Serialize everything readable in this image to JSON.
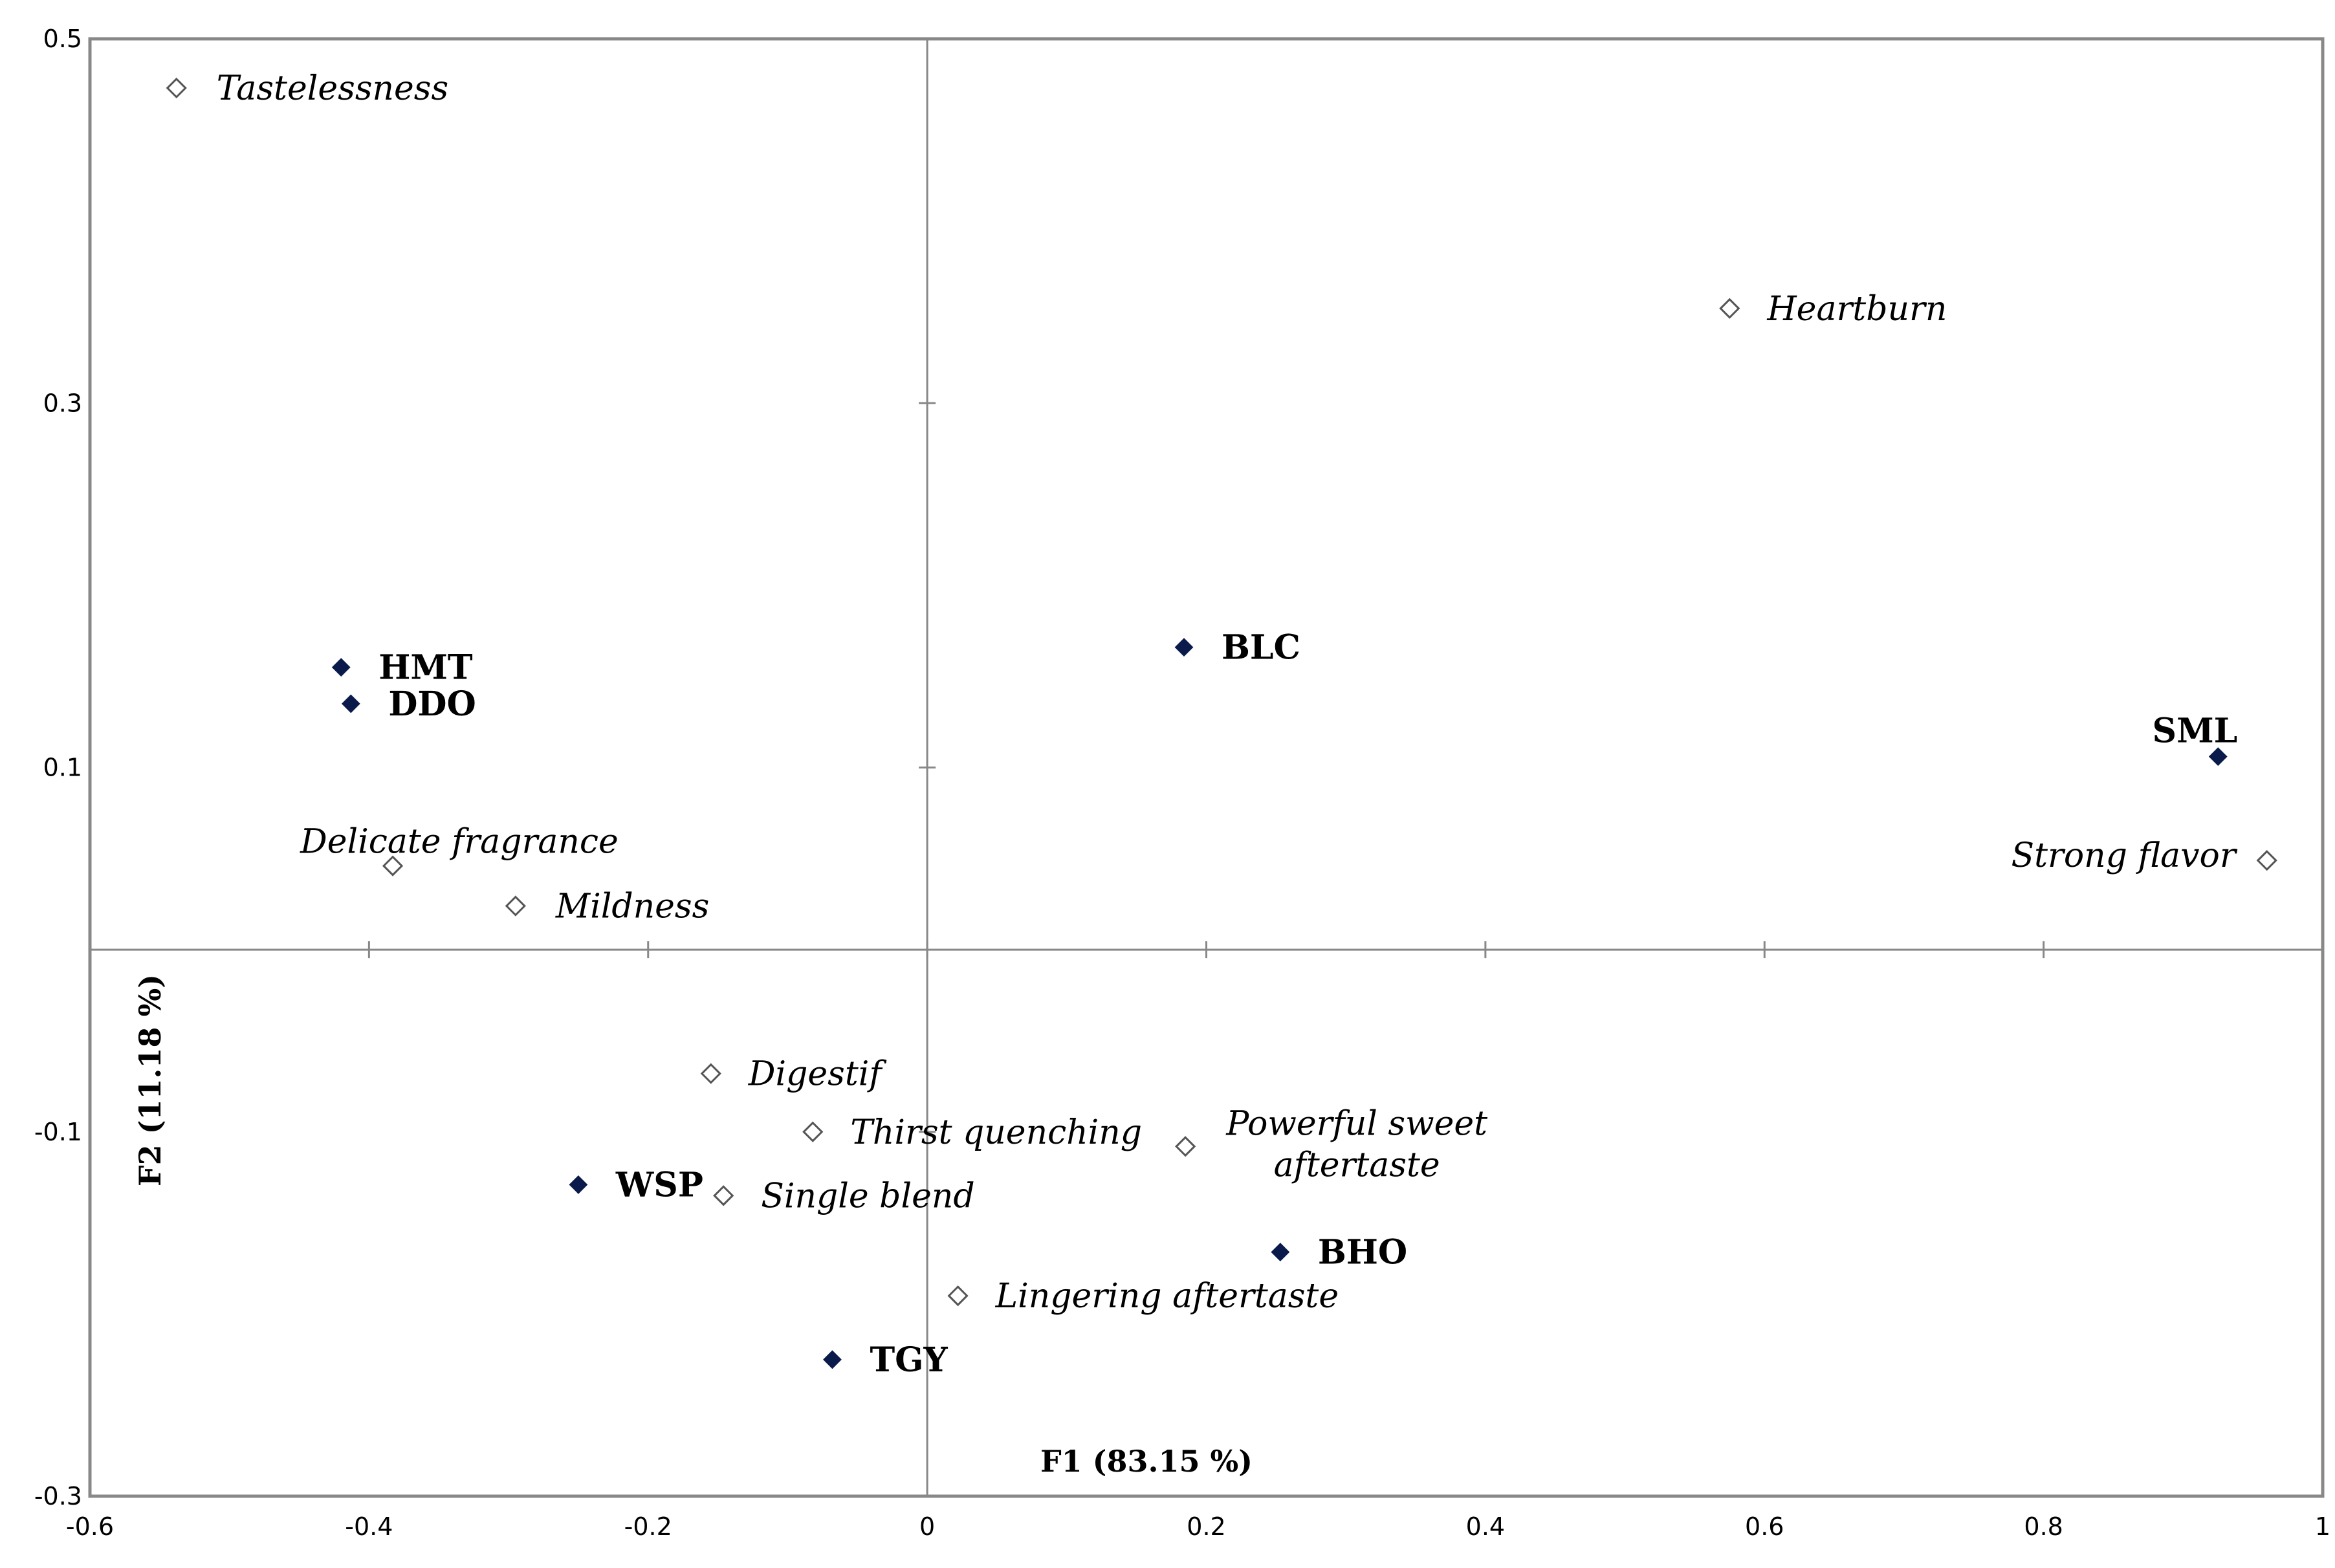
{
  "chart_data": {
    "type": "scatter",
    "title": "",
    "xlabel": "F1 (83.15 %)",
    "ylabel": "F2 (11.18 %)",
    "xlim": [
      -0.6,
      1.0
    ],
    "ylim": [
      -0.3,
      0.5
    ],
    "x_ticks": [
      "-0.6",
      "-0.4",
      "-0.2",
      "0",
      "0.2",
      "0.4",
      "0.6",
      "0.8",
      "1"
    ],
    "y_ticks": [
      "-0.3",
      "-0.1",
      "0.1",
      "0.3",
      "0.5"
    ],
    "grid": false,
    "legend": "none",
    "colors": {
      "sample": "#0a1a4a",
      "attribute_outline": "#555555",
      "frame": "#888888"
    },
    "series": [
      {
        "marker": "filled-diamond",
        "points": [
          {
            "label": "HMT",
            "x": -0.42,
            "y": 0.155
          },
          {
            "label": "DDO",
            "x": -0.413,
            "y": 0.135
          },
          {
            "label": "BLC",
            "x": 0.184,
            "y": 0.166
          },
          {
            "label": "SML",
            "x": 0.925,
            "y": 0.106
          },
          {
            "label": "WSP",
            "x": -0.25,
            "y": -0.129
          },
          {
            "label": "BHO",
            "x": 0.253,
            "y": -0.166
          },
          {
            "label": "TGY",
            "x": -0.068,
            "y": -0.225
          }
        ]
      },
      {
        "marker": "open-diamond",
        "points": [
          {
            "label": "Tastelessness",
            "x": -0.538,
            "y": 0.473
          },
          {
            "label": "Heartburn",
            "x": 0.575,
            "y": 0.352
          },
          {
            "label": "Delicate fragrance",
            "x": -0.383,
            "y": 0.046
          },
          {
            "label": "Mildness",
            "x": -0.295,
            "y": 0.024
          },
          {
            "label": "Strong flavor",
            "x": 0.96,
            "y": 0.049
          },
          {
            "label": "Digestif",
            "x": -0.155,
            "y": -0.068
          },
          {
            "label": "Thirst quenching",
            "x": -0.082,
            "y": -0.1
          },
          {
            "label": "Powerful sweet",
            "label_line2": "aftertaste",
            "x": 0.185,
            "y": -0.108
          },
          {
            "label": "Single blend",
            "x": -0.146,
            "y": -0.135
          },
          {
            "label": "Lingering aftertaste",
            "x": 0.022,
            "y": -0.19
          }
        ]
      }
    ]
  }
}
